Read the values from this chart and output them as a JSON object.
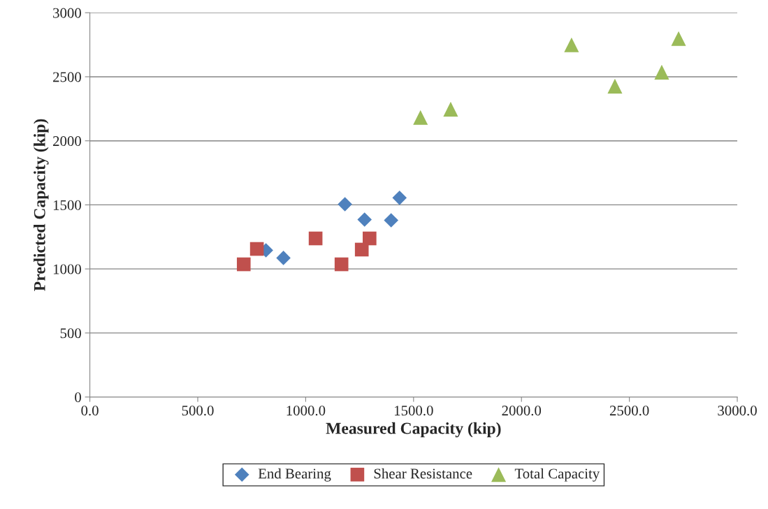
{
  "chart_data": {
    "type": "scatter",
    "xlabel": "Measured Capacity (kip)",
    "ylabel": "Predicted Capacity (kip)",
    "xlim": [
      0,
      3000
    ],
    "ylim": [
      0,
      3000
    ],
    "xticks": [
      {
        "value": 0,
        "label": "0.0"
      },
      {
        "value": 500,
        "label": "500.0"
      },
      {
        "value": 1000,
        "label": "1000.0"
      },
      {
        "value": 1500,
        "label": "1500.0"
      },
      {
        "value": 2000,
        "label": "2000.0"
      },
      {
        "value": 2500,
        "label": "2500.0"
      },
      {
        "value": 3000,
        "label": "3000.0"
      }
    ],
    "yticks": [
      0,
      500,
      1000,
      1500,
      2000,
      2500,
      3000
    ],
    "grid": "y",
    "legend": "bottom",
    "series": [
      {
        "name": "End Bearing",
        "color": "#4f81bd",
        "marker": "diamond",
        "x": [
          816,
          897,
          1182,
          1273,
          1396,
          1435
        ],
        "values": [
          1145,
          1086,
          1505,
          1385,
          1380,
          1555
        ]
      },
      {
        "name": "Shear Resistance",
        "color": "#c0504d",
        "marker": "square",
        "x": [
          713,
          774,
          1046,
          1166,
          1260,
          1296
        ],
        "values": [
          1036,
          1156,
          1238,
          1036,
          1151,
          1238
        ]
      },
      {
        "name": "Total Capacity",
        "color": "#9bbb59",
        "marker": "triangle",
        "x": [
          1532,
          1672,
          2232,
          2433,
          2650,
          2728
        ],
        "values": [
          2182,
          2247,
          2749,
          2427,
          2536,
          2798
        ]
      }
    ]
  }
}
